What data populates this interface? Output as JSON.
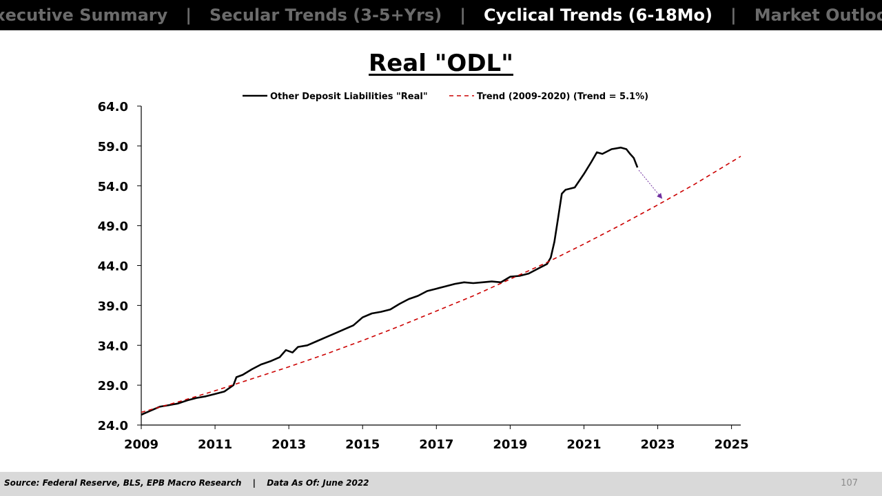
{
  "nav": {
    "tabs": [
      {
        "label": "Executive Summary",
        "active": false
      },
      {
        "label": "Secular Trends (3-5+Yrs)",
        "active": false
      },
      {
        "label": "Cyclical Trends (6-18Mo)",
        "active": true
      },
      {
        "label": "Market Outlook",
        "active": false
      }
    ],
    "separator": "|"
  },
  "slide_title": "Real \"ODL\"",
  "footer": {
    "source": "Source: Federal Reserve, BLS, EPB Macro Research",
    "divider": "|",
    "data_as_of": "Data As Of: June 2022",
    "page_number": "107"
  },
  "colors": {
    "actual_series": "#000000",
    "trend_series": "#cc0000",
    "arrow": "#7030a0",
    "nav_inactive": "#6b6b6b",
    "nav_active": "#ffffff"
  },
  "chart_data": {
    "type": "line",
    "title": "Real \"ODL\"",
    "xlim": [
      2009,
      2025.25
    ],
    "ylim": [
      24,
      64
    ],
    "x_ticks": [
      "2009",
      "2011",
      "2013",
      "2015",
      "2017",
      "2019",
      "2021",
      "2023",
      "2025"
    ],
    "y_ticks": [
      "24.0",
      "29.0",
      "34.0",
      "39.0",
      "44.0",
      "49.0",
      "54.0",
      "59.0",
      "64.0"
    ],
    "legend_position": "top",
    "grid": false,
    "series": [
      {
        "name": "Other Deposit Liabilities \"Real\"",
        "style": "solid",
        "points": [
          [
            2009.0,
            25.3
          ],
          [
            2009.25,
            25.8
          ],
          [
            2009.5,
            26.3
          ],
          [
            2009.75,
            26.5
          ],
          [
            2010.0,
            26.7
          ],
          [
            2010.25,
            27.1
          ],
          [
            2010.5,
            27.4
          ],
          [
            2010.75,
            27.6
          ],
          [
            2011.0,
            27.9
          ],
          [
            2011.25,
            28.2
          ],
          [
            2011.5,
            29.0
          ],
          [
            2011.58,
            30.0
          ],
          [
            2011.75,
            30.3
          ],
          [
            2012.0,
            31.0
          ],
          [
            2012.25,
            31.6
          ],
          [
            2012.5,
            32.0
          ],
          [
            2012.75,
            32.5
          ],
          [
            2012.92,
            33.4
          ],
          [
            2013.1,
            33.1
          ],
          [
            2013.25,
            33.8
          ],
          [
            2013.5,
            34.0
          ],
          [
            2013.75,
            34.5
          ],
          [
            2014.0,
            35.0
          ],
          [
            2014.25,
            35.5
          ],
          [
            2014.5,
            36.0
          ],
          [
            2014.75,
            36.5
          ],
          [
            2015.0,
            37.5
          ],
          [
            2015.25,
            38.0
          ],
          [
            2015.5,
            38.2
          ],
          [
            2015.75,
            38.5
          ],
          [
            2016.0,
            39.2
          ],
          [
            2016.25,
            39.8
          ],
          [
            2016.5,
            40.2
          ],
          [
            2016.75,
            40.8
          ],
          [
            2017.0,
            41.1
          ],
          [
            2017.25,
            41.4
          ],
          [
            2017.5,
            41.7
          ],
          [
            2017.75,
            41.9
          ],
          [
            2018.0,
            41.8
          ],
          [
            2018.25,
            41.9
          ],
          [
            2018.5,
            42.0
          ],
          [
            2018.75,
            41.9
          ],
          [
            2019.0,
            42.6
          ],
          [
            2019.25,
            42.7
          ],
          [
            2019.5,
            43.0
          ],
          [
            2019.75,
            43.6
          ],
          [
            2020.0,
            44.2
          ],
          [
            2020.1,
            45.0
          ],
          [
            2020.2,
            47.0
          ],
          [
            2020.3,
            50.0
          ],
          [
            2020.4,
            53.0
          ],
          [
            2020.5,
            53.5
          ],
          [
            2020.75,
            53.8
          ],
          [
            2021.0,
            55.5
          ],
          [
            2021.2,
            57.0
          ],
          [
            2021.35,
            58.2
          ],
          [
            2021.5,
            58.0
          ],
          [
            2021.75,
            58.6
          ],
          [
            2022.0,
            58.8
          ],
          [
            2022.15,
            58.6
          ],
          [
            2022.25,
            58.0
          ],
          [
            2022.35,
            57.5
          ],
          [
            2022.45,
            56.3
          ]
        ]
      },
      {
        "name": "Trend (2009-2020) (Trend = 5.1%)",
        "style": "dashed",
        "points": [
          [
            2009.0,
            25.6
          ],
          [
            2010.0,
            26.9
          ],
          [
            2011.0,
            28.3
          ],
          [
            2012.0,
            29.8
          ],
          [
            2013.0,
            31.3
          ],
          [
            2014.0,
            32.9
          ],
          [
            2015.0,
            34.6
          ],
          [
            2016.0,
            36.4
          ],
          [
            2017.0,
            38.3
          ],
          [
            2018.0,
            40.2
          ],
          [
            2019.0,
            42.3
          ],
          [
            2020.0,
            44.4
          ],
          [
            2021.0,
            46.7
          ],
          [
            2022.0,
            49.1
          ],
          [
            2023.0,
            51.6
          ],
          [
            2024.0,
            54.2
          ],
          [
            2025.0,
            57.0
          ],
          [
            2025.25,
            57.7
          ]
        ]
      }
    ],
    "annotations": [
      {
        "type": "arrow",
        "style": "dotted",
        "from": [
          2022.45,
          56.3
        ],
        "to": [
          2023.1,
          52.5
        ]
      }
    ]
  }
}
